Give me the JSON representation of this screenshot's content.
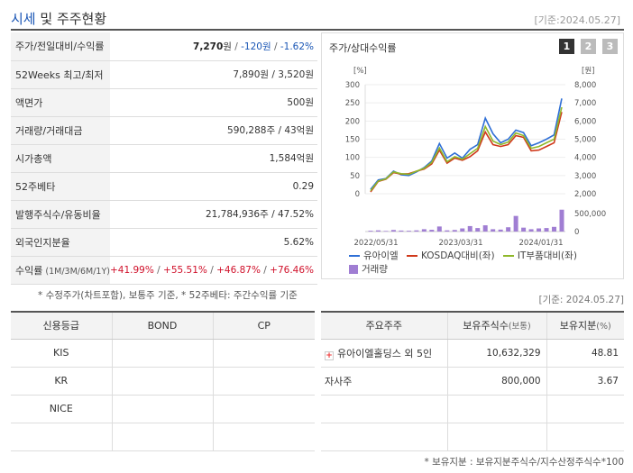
{
  "header": {
    "title_main": "시세",
    "title_rest": " 및 주주현황",
    "date": "[기준:2024.05.27]"
  },
  "price_table": {
    "rows": [
      {
        "label": "주가/전일대비/수익률",
        "value": "7,270",
        "unit": "원",
        "sep1": " / ",
        "change": "-120원",
        "sep2": " / ",
        "rate": "-1.62%"
      },
      {
        "label": "52Weeks 최고/최저",
        "value": "7,890원 / 3,520원"
      },
      {
        "label": "액면가",
        "value": "500원"
      },
      {
        "label": "거래량/거래대금",
        "value": "590,288주 / 43억원"
      },
      {
        "label": "시가총액",
        "value": "1,584억원"
      },
      {
        "label": "52주베타",
        "value": "0.29"
      },
      {
        "label": "발행주식수/유동비율",
        "value": "21,784,936주 / 47.52%"
      },
      {
        "label": "외국인지분율",
        "value": "5.62%"
      }
    ],
    "return_row": {
      "label": "수익률",
      "periods": " (1M/3M/6M/1Y)",
      "r1": "+41.99%",
      "r2": "+55.51%",
      "r3": "+46.87%",
      "r4": "+76.46%",
      "sep": " / "
    },
    "note": "* 수정주가(차트포함), 보통주 기준, * 52주베타: 주간수익률 기준"
  },
  "chart": {
    "title": "주가/상대수익률",
    "tabs": [
      "1",
      "2",
      "3"
    ],
    "active_tab": 0,
    "y_left_unit": "[%]",
    "y_right_unit": "[원]",
    "y_left_ticks": [
      "300",
      "250",
      "200",
      "150",
      "100",
      "50",
      "0"
    ],
    "y_right_ticks": [
      "8,000",
      "7,000",
      "6,000",
      "5,000",
      "4,000",
      "3,000",
      "2,000"
    ],
    "vol_tick_top": "500,000",
    "vol_tick_bottom": "0",
    "x_ticks": [
      "2022/05/31",
      "2023/03/31",
      "2024/01/31"
    ],
    "legend": [
      "유아이엘",
      "KOSDAQ대비(좌)",
      "IT부품대비(좌)",
      "거래량"
    ],
    "colors": {
      "stock": "#2f6fd6",
      "kosdaq": "#d0391b",
      "it": "#8fb82a",
      "volume": "#a07ed3"
    }
  },
  "chart_data": {
    "type": "line",
    "x_labels": [
      "2022/05/31",
      "2023/03/31",
      "2024/01/31"
    ],
    "ylim_left": [
      0,
      300
    ],
    "ylim_right": [
      2000,
      8000
    ],
    "series": [
      {
        "name": "유아이엘",
        "axis": "left",
        "values": [
          12,
          38,
          42,
          62,
          52,
          50,
          60,
          72,
          90,
          138,
          98,
          112,
          98,
          122,
          135,
          208,
          165,
          140,
          150,
          175,
          168,
          132,
          140,
          150,
          162,
          262
        ]
      },
      {
        "name": "KOSDAQ대비(좌)",
        "axis": "left",
        "values": [
          5,
          34,
          40,
          58,
          54,
          55,
          62,
          68,
          82,
          120,
          84,
          98,
          92,
          102,
          118,
          170,
          135,
          130,
          135,
          160,
          155,
          118,
          120,
          130,
          140,
          225
        ]
      },
      {
        "name": "IT부품대비(좌)",
        "axis": "left",
        "values": [
          8,
          35,
          41,
          60,
          55,
          53,
          62,
          70,
          86,
          126,
          88,
          102,
          95,
          110,
          125,
          185,
          145,
          135,
          142,
          167,
          160,
          125,
          130,
          140,
          150,
          238
        ]
      },
      {
        "name": "거래량",
        "axis": "volume",
        "values": [
          20000,
          30000,
          15000,
          40000,
          25000,
          20000,
          30000,
          60000,
          45000,
          130000,
          30000,
          40000,
          80000,
          140000,
          90000,
          160000,
          60000,
          50000,
          110000,
          400000,
          100000,
          60000,
          80000,
          90000,
          120000,
          560000
        ]
      }
    ]
  },
  "credit_table": {
    "headers": [
      "신용등급",
      "BOND",
      "CP"
    ],
    "rows": [
      [
        "KIS",
        "",
        ""
      ],
      [
        "KR",
        "",
        ""
      ],
      [
        "NICE",
        "",
        ""
      ],
      [
        "",
        "",
        ""
      ]
    ]
  },
  "holders": {
    "date": "[기준: 2024.05.27]",
    "headers": {
      "name": "주요주주",
      "shares": "보유주식수",
      "shares_sub": "(보통)",
      "ratio": "보유지분",
      "ratio_sub": "(%)"
    },
    "rows": [
      {
        "name": "유아이엘홀딩스 외 5인",
        "shares": "10,632,329",
        "ratio": "48.81",
        "expand": true
      },
      {
        "name": "자사주",
        "shares": "800,000",
        "ratio": "3.67",
        "expand": false
      },
      {
        "name": "",
        "shares": "",
        "ratio": "",
        "expand": false
      },
      {
        "name": "",
        "shares": "",
        "ratio": "",
        "expand": false
      }
    ],
    "note": "* 보유지분 : 보유지분주식수/지수산정주식수*100"
  }
}
